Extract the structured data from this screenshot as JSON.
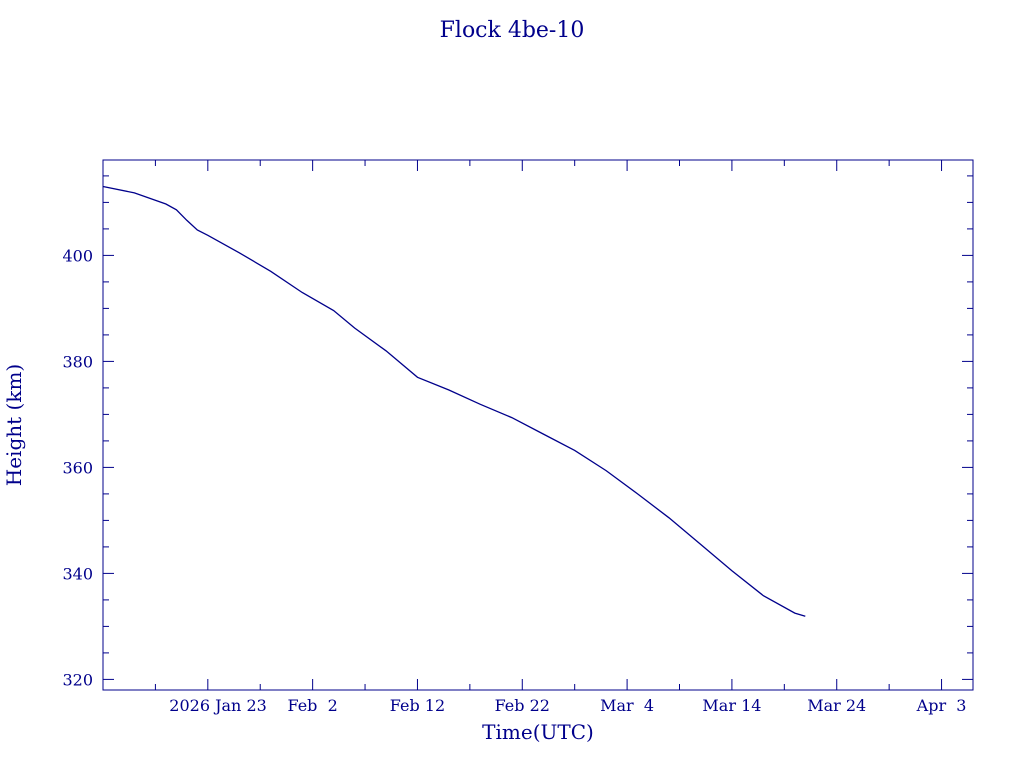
{
  "chart_data": {
    "type": "line",
    "title": "Flock 4be-10",
    "xlabel": "Time(UTC)",
    "ylabel": "Height (km)",
    "x_axis_type": "date",
    "xlim": [
      "2026-01-13",
      "2026-04-06"
    ],
    "ylim": [
      318,
      418
    ],
    "grid": false,
    "color": "#00008b",
    "x_ticks": [
      {
        "date": "2026-01-23",
        "label": "2026 Jan 23"
      },
      {
        "date": "2026-02-02",
        "label": "Feb  2"
      },
      {
        "date": "2026-02-12",
        "label": "Feb 12"
      },
      {
        "date": "2026-02-22",
        "label": "Feb 22"
      },
      {
        "date": "2026-03-04",
        "label": "Mar  4"
      },
      {
        "date": "2026-03-14",
        "label": "Mar 14"
      },
      {
        "date": "2026-03-24",
        "label": "Mar 24"
      },
      {
        "date": "2026-04-03",
        "label": "Apr  3"
      }
    ],
    "y_ticks": [
      320,
      340,
      360,
      380,
      400
    ],
    "series": [
      {
        "x": [
          "2026-01-13",
          "2026-01-16",
          "2026-01-19",
          "2026-01-20",
          "2026-01-21",
          "2026-01-22",
          "2026-01-23",
          "2026-01-26",
          "2026-01-29",
          "2026-02-01",
          "2026-02-04",
          "2026-02-06",
          "2026-02-09",
          "2026-02-12",
          "2026-02-15",
          "2026-02-18",
          "2026-02-21",
          "2026-02-24",
          "2026-02-27",
          "2026-03-02",
          "2026-03-05",
          "2026-03-08",
          "2026-03-11",
          "2026-03-14",
          "2026-03-17",
          "2026-03-20",
          "2026-03-21"
        ],
        "y": [
          413.0,
          411.8,
          409.7,
          408.6,
          406.6,
          404.8,
          403.8,
          400.5,
          397.0,
          393.0,
          389.6,
          386.3,
          382.0,
          377.0,
          374.6,
          371.9,
          369.4,
          366.3,
          363.2,
          359.4,
          355.0,
          350.5,
          345.5,
          340.5,
          335.8,
          332.5,
          331.9
        ]
      }
    ]
  }
}
